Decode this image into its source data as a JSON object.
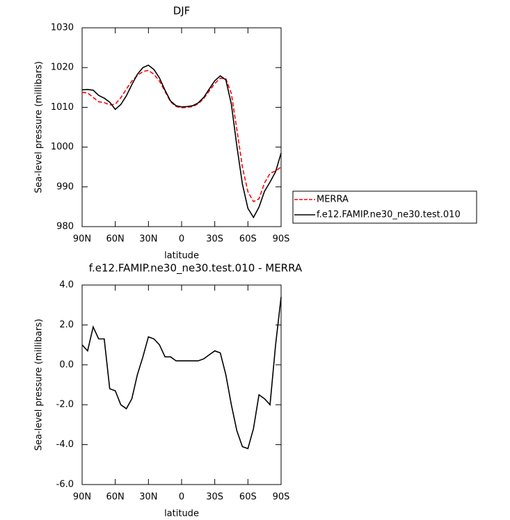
{
  "chart_data": [
    {
      "type": "line",
      "title": "DJF",
      "xlabel": "latitude",
      "ylabel": "Sea-level pressure (millibars)",
      "x": [
        90,
        85,
        80,
        75,
        70,
        65,
        60,
        55,
        50,
        45,
        40,
        35,
        30,
        25,
        20,
        15,
        10,
        5,
        0,
        -5,
        -10,
        -15,
        -20,
        -25,
        -30,
        -35,
        -40,
        -45,
        -50,
        -55,
        -60,
        -65,
        -70,
        -75,
        -80,
        -85,
        -90
      ],
      "series": [
        {
          "name": "MERRA",
          "color": "#ff0000",
          "dashed": true,
          "values": [
            1013.8,
            1013.6,
            1012.5,
            1011.4,
            1011.2,
            1010.6,
            1010.8,
            1012.4,
            1014.6,
            1016.6,
            1018.0,
            1019.0,
            1019.3,
            1018.3,
            1016.6,
            1014.0,
            1011.4,
            1010.2,
            1009.9,
            1010.0,
            1010.2,
            1010.9,
            1012.2,
            1014.1,
            1016.0,
            1017.3,
            1017.2,
            1013.5,
            1004.5,
            995.0,
            988.8,
            986.3,
            987.0,
            991.0,
            993.4,
            994.0,
            995.0
          ]
        },
        {
          "name": "f.e12.FAMIP.ne30_ne30.test.010",
          "color": "#000000",
          "dashed": false,
          "values": [
            1014.4,
            1014.5,
            1014.3,
            1013.0,
            1012.3,
            1011.3,
            1009.5,
            1010.7,
            1012.9,
            1015.7,
            1018.3,
            1020.0,
            1020.6,
            1019.5,
            1017.4,
            1014.3,
            1011.6,
            1010.4,
            1010.1,
            1010.2,
            1010.4,
            1011.1,
            1012.5,
            1014.6,
            1016.7,
            1017.9,
            1016.9,
            1010.8,
            1000.3,
            990.7,
            984.6,
            982.3,
            984.9,
            988.9,
            991.2,
            993.8,
            998.5
          ]
        }
      ],
      "xlim": [
        90,
        -90
      ],
      "xticks": [
        {
          "value": 90,
          "label": "90N"
        },
        {
          "value": 60,
          "label": "60N"
        },
        {
          "value": 30,
          "label": "30N"
        },
        0,
        {
          "value": -30,
          "label": "30S"
        },
        {
          "value": -60,
          "label": "60S"
        },
        {
          "value": -90,
          "label": "90S"
        }
      ],
      "ylim": [
        980,
        1030
      ],
      "yticks": [
        980,
        990,
        1000,
        1010,
        1020,
        1030
      ],
      "legend": "right"
    },
    {
      "type": "line",
      "title": "f.e12.FAMIP.ne30_ne30.test.010 - MERRA",
      "xlabel": "latitude",
      "ylabel": "Sea-level pressure (millibars)",
      "x": [
        90,
        85,
        80,
        75,
        70,
        65,
        60,
        55,
        50,
        45,
        40,
        35,
        30,
        25,
        20,
        15,
        10,
        5,
        0,
        -5,
        -10,
        -15,
        -20,
        -25,
        -30,
        -35,
        -40,
        -45,
        -50,
        -55,
        -60,
        -65,
        -70,
        -75,
        -80,
        -85,
        -90
      ],
      "color": "#000000",
      "values": [
        1.0,
        0.7,
        1.9,
        1.3,
        1.3,
        -1.2,
        -1.3,
        -2.0,
        -2.2,
        -1.7,
        -0.5,
        0.4,
        1.4,
        1.3,
        1.0,
        0.4,
        0.4,
        0.2,
        0.2,
        0.2,
        0.2,
        0.2,
        0.3,
        0.5,
        0.7,
        0.6,
        -0.5,
        -2.0,
        -3.3,
        -4.1,
        -4.2,
        -3.2,
        -1.5,
        -1.7,
        -2.0,
        1.0,
        3.4
      ],
      "xlim": [
        90,
        -90
      ],
      "xticks": [
        {
          "value": 90,
          "label": "90N"
        },
        {
          "value": 60,
          "label": "60N"
        },
        {
          "value": 30,
          "label": "30N"
        },
        0,
        {
          "value": -30,
          "label": "30S"
        },
        {
          "value": -60,
          "label": "60S"
        },
        {
          "value": -90,
          "label": "90S"
        }
      ],
      "ylim": [
        -6,
        4
      ],
      "yticks": [
        {
          "value": -6,
          "label": "-6.0"
        },
        {
          "value": -4,
          "label": "-4.0"
        },
        {
          "value": -2,
          "label": "-2.0"
        },
        {
          "value": 0,
          "label": "0.0"
        },
        {
          "value": 2,
          "label": "2.0"
        },
        {
          "value": 4,
          "label": "4.0"
        }
      ]
    }
  ]
}
